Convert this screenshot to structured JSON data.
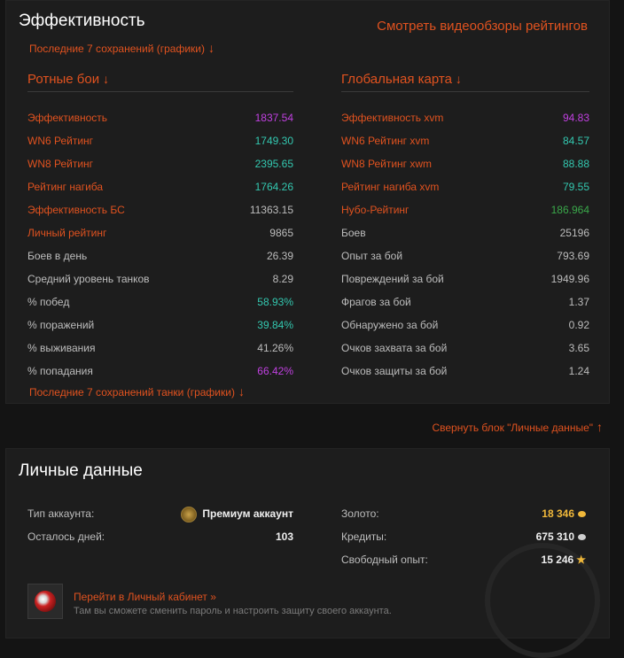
{
  "efficiency": {
    "title": "Эффективность",
    "review_link": "Смотреть видеообзоры рейтингов",
    "last7_graphs": "Последние 7 сохранений (графики)",
    "last7_tanks": "Последние 7 сохранений танки (графики)",
    "arrow_down": "↓",
    "company": {
      "title": "Ротные бои",
      "rows": [
        {
          "label": "Эффективность",
          "value": "1837.54",
          "highlight": true,
          "color": "#c040e0"
        },
        {
          "label": "WN6 Рейтинг",
          "value": "1749.30",
          "highlight": true,
          "color": "#33c8b0"
        },
        {
          "label": "WN8 Рейтинг",
          "value": "2395.65",
          "highlight": true,
          "color": "#33c8b0"
        },
        {
          "label": "Рейтинг нагиба",
          "value": "1764.26",
          "highlight": true,
          "color": "#33c8b0"
        },
        {
          "label": "Эффективность БС",
          "value": "11363.15",
          "highlight": true,
          "color": "#bdbdbd"
        },
        {
          "label": "Личный рейтинг",
          "value": "9865",
          "highlight": true,
          "color": "#bdbdbd"
        },
        {
          "label": "Боев в день",
          "value": "26.39",
          "highlight": false,
          "color": "#bdbdbd"
        },
        {
          "label": "Средний уровень танков",
          "value": "8.29",
          "highlight": false,
          "color": "#bdbdbd"
        },
        {
          "label": "% побед",
          "value": "58.93%",
          "highlight": false,
          "color": "#33c8b0"
        },
        {
          "label": "% поражений",
          "value": "39.84%",
          "highlight": false,
          "color": "#33c8b0"
        },
        {
          "label": "% выживания",
          "value": "41.26%",
          "highlight": false,
          "color": "#bdbdbd"
        },
        {
          "label": "% попадания",
          "value": "66.42%",
          "highlight": false,
          "color": "#c040e0"
        }
      ]
    },
    "global": {
      "title": "Глобальная карта",
      "rows": [
        {
          "label": "Эффективность xvm",
          "value": "94.83",
          "highlight": true,
          "color": "#c040e0"
        },
        {
          "label": "WN6 Рейтинг xvm",
          "value": "84.57",
          "highlight": true,
          "color": "#33c8b0"
        },
        {
          "label": "WN8 Рейтинг xwm",
          "value": "88.88",
          "highlight": true,
          "color": "#33c8b0"
        },
        {
          "label": "Рейтинг нагиба xvm",
          "value": "79.55",
          "highlight": true,
          "color": "#33c8b0"
        },
        {
          "label": "Нубо-Рейтинг",
          "value": "186.964",
          "highlight": true,
          "color": "#3aa84a"
        },
        {
          "label": "Боев",
          "value": "25196",
          "highlight": false,
          "color": "#bdbdbd"
        },
        {
          "label": "Опыт за бой",
          "value": "793.69",
          "highlight": false,
          "color": "#bdbdbd"
        },
        {
          "label": "Повреждений за бой",
          "value": "1949.96",
          "highlight": false,
          "color": "#bdbdbd"
        },
        {
          "label": "Фрагов за бой",
          "value": "1.37",
          "highlight": false,
          "color": "#bdbdbd"
        },
        {
          "label": "Обнаружено за бой",
          "value": "0.92",
          "highlight": false,
          "color": "#bdbdbd"
        },
        {
          "label": "Очков захвата за бой",
          "value": "3.65",
          "highlight": false,
          "color": "#bdbdbd"
        },
        {
          "label": "Очков защиты за бой",
          "value": "1.24",
          "highlight": false,
          "color": "#bdbdbd"
        }
      ]
    }
  },
  "collapse_link": "Свернуть блок \"Личные данные\"",
  "arrow_up": "↑",
  "personal": {
    "title": "Личные данные",
    "account_type_label": "Тип аккаунта:",
    "account_type_value": "Премиум аккаунт",
    "days_left_label": "Осталось дней:",
    "days_left_value": "103",
    "gold_label": "Золото:",
    "gold_value": "18 346",
    "credits_label": "Кредиты:",
    "credits_value": "675 310",
    "free_xp_label": "Свободный опыт:",
    "free_xp_value": "15 246",
    "cabinet_link": "Перейти в Личный кабинет »",
    "cabinet_desc": "Там вы сможете сменить пароль и настроить защиту своего аккаунта."
  }
}
